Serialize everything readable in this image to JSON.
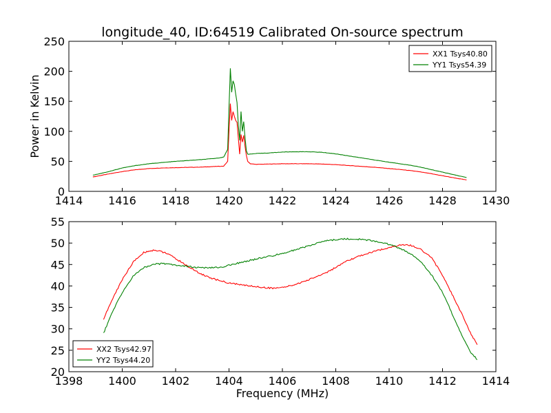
{
  "chart_data": [
    {
      "type": "line",
      "title": "longitude_40, ID:64519 Calibrated On-source spectrum",
      "xlabel": "",
      "ylabel": "Power in Kelvin",
      "xlim": [
        1414,
        1430
      ],
      "ylim": [
        0,
        250
      ],
      "xticks": [
        1414,
        1416,
        1418,
        1420,
        1422,
        1424,
        1426,
        1428,
        1430
      ],
      "yticks": [
        0,
        50,
        100,
        150,
        200,
        250
      ],
      "grid": false,
      "legend": "top-right",
      "series": [
        {
          "name": "XX1 Tsys40.80",
          "color": "#ff0000",
          "x": [
            1414.9,
            1415.5,
            1416.0,
            1416.5,
            1417.0,
            1417.5,
            1418.0,
            1418.5,
            1419.0,
            1419.5,
            1419.8,
            1419.95,
            1420.0,
            1420.05,
            1420.1,
            1420.15,
            1420.2,
            1420.25,
            1420.3,
            1420.35,
            1420.4,
            1420.45,
            1420.5,
            1420.55,
            1420.6,
            1420.65,
            1420.7,
            1420.8,
            1421.0,
            1421.5,
            1422.0,
            1422.5,
            1423.0,
            1423.5,
            1424.0,
            1424.5,
            1425.0,
            1425.5,
            1426.0,
            1426.5,
            1427.0,
            1427.5,
            1428.0,
            1428.5,
            1428.9
          ],
          "y": [
            24,
            29,
            33,
            36,
            38,
            39,
            39.5,
            40,
            40.5,
            41.5,
            42,
            50,
            100,
            146,
            118,
            133,
            125,
            118,
            115,
            88,
            62,
            95,
            82,
            93,
            75,
            60,
            50,
            46,
            45,
            45.5,
            46,
            46,
            46,
            45.5,
            44.5,
            43,
            41.5,
            40,
            38,
            36,
            33.5,
            30,
            26,
            22,
            19
          ]
        },
        {
          "name": "YY1 Tsys54.39",
          "color": "#008000",
          "x": [
            1414.9,
            1415.5,
            1416.0,
            1416.5,
            1417.0,
            1417.5,
            1418.0,
            1418.5,
            1419.0,
            1419.5,
            1419.8,
            1419.95,
            1420.0,
            1420.05,
            1420.1,
            1420.15,
            1420.2,
            1420.25,
            1420.3,
            1420.35,
            1420.4,
            1420.45,
            1420.5,
            1420.55,
            1420.6,
            1420.65,
            1420.7,
            1420.8,
            1421.0,
            1421.5,
            1422.0,
            1422.5,
            1423.0,
            1423.5,
            1424.0,
            1424.5,
            1425.0,
            1425.5,
            1426.0,
            1426.5,
            1427.0,
            1427.5,
            1428.0,
            1428.5,
            1428.9
          ],
          "y": [
            27,
            33,
            39,
            43,
            46,
            48,
            50,
            51.5,
            53,
            55,
            57,
            70,
            140,
            205,
            165,
            184,
            178,
            162,
            148,
            110,
            85,
            133,
            100,
            116,
            90,
            68,
            62,
            62,
            63,
            64,
            65.5,
            66,
            66,
            65,
            62.5,
            59,
            55.5,
            52,
            48.5,
            45.5,
            42,
            37,
            32,
            27,
            23
          ]
        }
      ]
    },
    {
      "type": "line",
      "title": "",
      "xlabel": "Frequency (MHz)",
      "ylabel": "",
      "xlim": [
        1398,
        1414
      ],
      "ylim": [
        20,
        55
      ],
      "xticks": [
        1398,
        1400,
        1402,
        1404,
        1406,
        1408,
        1410,
        1412,
        1414
      ],
      "yticks": [
        20,
        25,
        30,
        35,
        40,
        45,
        50,
        55
      ],
      "grid": false,
      "legend": "bottom-left",
      "series": [
        {
          "name": "XX2 Tsys42.97",
          "color": "#ff0000",
          "x": [
            1399.3,
            1399.6,
            1400.0,
            1400.4,
            1400.8,
            1401.2,
            1401.6,
            1402.0,
            1402.4,
            1402.8,
            1403.2,
            1403.6,
            1404.0,
            1404.4,
            1404.8,
            1405.2,
            1405.6,
            1406.0,
            1406.4,
            1406.8,
            1407.2,
            1407.6,
            1408.0,
            1408.4,
            1408.8,
            1409.2,
            1409.6,
            1410.0,
            1410.4,
            1410.8,
            1411.2,
            1411.6,
            1412.0,
            1412.4,
            1412.8,
            1413.0,
            1413.3
          ],
          "y": [
            32.3,
            36.5,
            41.5,
            45.5,
            47.8,
            48.4,
            47.8,
            46.4,
            44.8,
            43.3,
            42.1,
            41.3,
            40.7,
            40.3,
            40.0,
            39.7,
            39.5,
            39.6,
            40.2,
            41.0,
            42.0,
            43.0,
            44.3,
            45.7,
            46.8,
            47.6,
            48.3,
            49.0,
            49.5,
            49.5,
            48.5,
            46.5,
            42.5,
            37.5,
            32.5,
            29.5,
            26.3
          ]
        },
        {
          "name": "YY2 Tsys44.20",
          "color": "#008000",
          "x": [
            1399.3,
            1399.6,
            1400.0,
            1400.4,
            1400.8,
            1401.2,
            1401.6,
            1402.0,
            1402.4,
            1402.8,
            1403.2,
            1403.6,
            1404.0,
            1404.4,
            1404.8,
            1405.2,
            1405.6,
            1406.0,
            1406.4,
            1406.8,
            1407.2,
            1407.6,
            1408.0,
            1408.4,
            1408.8,
            1409.2,
            1409.6,
            1410.0,
            1410.4,
            1410.8,
            1411.2,
            1411.6,
            1412.0,
            1412.4,
            1412.8,
            1413.0,
            1413.3
          ],
          "y": [
            29.0,
            33.5,
            38.5,
            42.2,
            44.3,
            45.1,
            45.2,
            44.9,
            44.6,
            44.3,
            44.2,
            44.3,
            44.8,
            45.4,
            46.0,
            46.5,
            47.0,
            47.6,
            48.3,
            49.0,
            49.8,
            50.5,
            50.8,
            51.0,
            50.9,
            50.7,
            50.3,
            49.7,
            48.8,
            47.5,
            45.5,
            42.5,
            38.5,
            33.0,
            27.5,
            25.0,
            22.8
          ]
        }
      ]
    }
  ]
}
